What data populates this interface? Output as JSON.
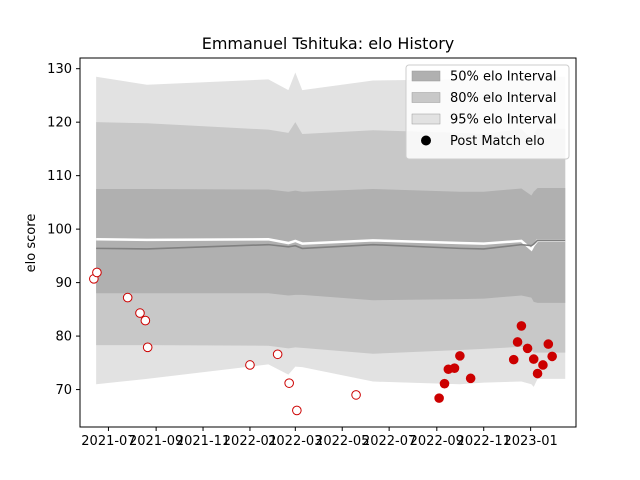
{
  "chart_data": {
    "type": "line",
    "title": "Emmanuel Tshituka: elo History",
    "xlabel": "",
    "ylabel": "elo score",
    "ylim": [
      63,
      132
    ],
    "xlim": [
      "2021-05-25",
      "2023-03-01"
    ],
    "grid": false,
    "legend_position": "top-right",
    "x_ticks": [
      "2021-07",
      "2021-09",
      "2021-11",
      "2022-01",
      "2022-03",
      "2022-05",
      "2022-07",
      "2022-09",
      "2022-11",
      "2023-01"
    ],
    "y_ticks": [
      70,
      80,
      90,
      100,
      110,
      120,
      130
    ],
    "legend": [
      {
        "label": "50% elo Interval",
        "kind": "band",
        "color": "#b0b0b0"
      },
      {
        "label": "80% elo Interval",
        "kind": "band",
        "color": "#c8c8c8"
      },
      {
        "label": "95% elo Interval",
        "kind": "band",
        "color": "#e2e2e2"
      },
      {
        "label": "Post Match elo",
        "kind": "marker",
        "color": "#000000"
      }
    ],
    "bands": {
      "x": [
        "2021-06-15",
        "2021-08-20",
        "2022-01-25",
        "2022-02-20",
        "2022-03-01",
        "2022-03-10",
        "2022-06-10",
        "2022-10-01",
        "2022-11-01",
        "2022-12-20",
        "2023-01-02",
        "2023-01-05",
        "2023-01-10",
        "2023-02-15"
      ],
      "mean": [
        96.4,
        96.3,
        97.1,
        96.7,
        96.9,
        96.4,
        97.1,
        96.4,
        96.3,
        97.1,
        96.9,
        97.2,
        97.9,
        97.9
      ],
      "upper_line": [
        98.1,
        98.0,
        98.1,
        97.4,
        97.8,
        97.3,
        97.9,
        97.4,
        97.3,
        97.8,
        96.2,
        97.0,
        97.9,
        97.9
      ],
      "i50": {
        "lower": [
          88.0,
          88.0,
          88.0,
          87.6,
          87.7,
          87.7,
          86.7,
          86.9,
          87.0,
          87.6,
          87.2,
          86.4,
          86.2,
          86.2
        ],
        "upper": [
          107.5,
          107.5,
          107.4,
          107.0,
          107.2,
          107.0,
          107.5,
          107.0,
          107.0,
          107.6,
          106.3,
          107.0,
          107.7,
          107.7
        ]
      },
      "i80": {
        "lower": [
          78.3,
          78.3,
          78.2,
          77.7,
          77.9,
          77.8,
          76.7,
          77.4,
          77.6,
          78.0,
          77.5,
          76.9,
          76.9,
          76.9
        ],
        "upper": [
          120.0,
          119.8,
          118.6,
          118.0,
          120.0,
          117.8,
          118.5,
          118.0,
          117.8,
          118.7,
          116.8,
          117.8,
          118.8,
          118.8
        ]
      },
      "i95": {
        "lower": [
          71.0,
          72.0,
          74.7,
          72.8,
          74.3,
          74.2,
          71.5,
          71.0,
          71.3,
          71.5,
          71.0,
          70.5,
          72.0,
          72.0
        ],
        "upper": [
          128.5,
          127.0,
          128.0,
          126.0,
          129.3,
          126.0,
          127.8,
          128.0,
          128.0,
          128.0,
          128.0,
          128.5,
          128.5,
          128.5
        ]
      }
    },
    "series": [
      {
        "name": "Post Match elo",
        "points": [
          {
            "x": "2021-06-12",
            "y": 90.7,
            "fill": "#ffffff"
          },
          {
            "x": "2021-06-16",
            "y": 91.9,
            "fill": "#ffffff"
          },
          {
            "x": "2021-07-26",
            "y": 87.2,
            "fill": "#ffffff"
          },
          {
            "x": "2021-08-11",
            "y": 84.3,
            "fill": "#ffffff"
          },
          {
            "x": "2021-08-18",
            "y": 82.9,
            "fill": "#ffffff"
          },
          {
            "x": "2021-08-21",
            "y": 77.9,
            "fill": "#ffffff"
          },
          {
            "x": "2022-01-01",
            "y": 74.6,
            "fill": "#ffffff"
          },
          {
            "x": "2022-02-06",
            "y": 76.6,
            "fill": "#ffffff"
          },
          {
            "x": "2022-02-21",
            "y": 71.2,
            "fill": "#ffffff"
          },
          {
            "x": "2022-03-03",
            "y": 66.1,
            "fill": "#ffffff"
          },
          {
            "x": "2022-05-19",
            "y": 69.0,
            "fill": "#ffffff"
          },
          {
            "x": "2022-09-04",
            "y": 68.4,
            "fill": "#cc0000"
          },
          {
            "x": "2022-09-11",
            "y": 71.1,
            "fill": "#cc0000"
          },
          {
            "x": "2022-09-16",
            "y": 73.8,
            "fill": "#cc0000"
          },
          {
            "x": "2022-09-24",
            "y": 74.0,
            "fill": "#cc0000"
          },
          {
            "x": "2022-10-01",
            "y": 76.3,
            "fill": "#cc0000"
          },
          {
            "x": "2022-10-15",
            "y": 72.1,
            "fill": "#cc0000"
          },
          {
            "x": "2022-12-10",
            "y": 75.6,
            "fill": "#cc0000"
          },
          {
            "x": "2022-12-15",
            "y": 78.9,
            "fill": "#cc0000"
          },
          {
            "x": "2022-12-20",
            "y": 81.9,
            "fill": "#cc0000"
          },
          {
            "x": "2022-12-28",
            "y": 77.7,
            "fill": "#cc0000"
          },
          {
            "x": "2023-01-05",
            "y": 75.7,
            "fill": "#cc0000"
          },
          {
            "x": "2023-01-10",
            "y": 73.0,
            "fill": "#cc0000"
          },
          {
            "x": "2023-01-17",
            "y": 74.6,
            "fill": "#cc0000"
          },
          {
            "x": "2023-01-24",
            "y": 78.5,
            "fill": "#cc0000"
          },
          {
            "x": "2023-01-29",
            "y": 76.2,
            "fill": "#cc0000"
          }
        ]
      }
    ],
    "colors": {
      "point_edge": "#cc0000",
      "axis": "#000000",
      "mean_line": "#808080",
      "upper_line": "#ffffff"
    }
  }
}
